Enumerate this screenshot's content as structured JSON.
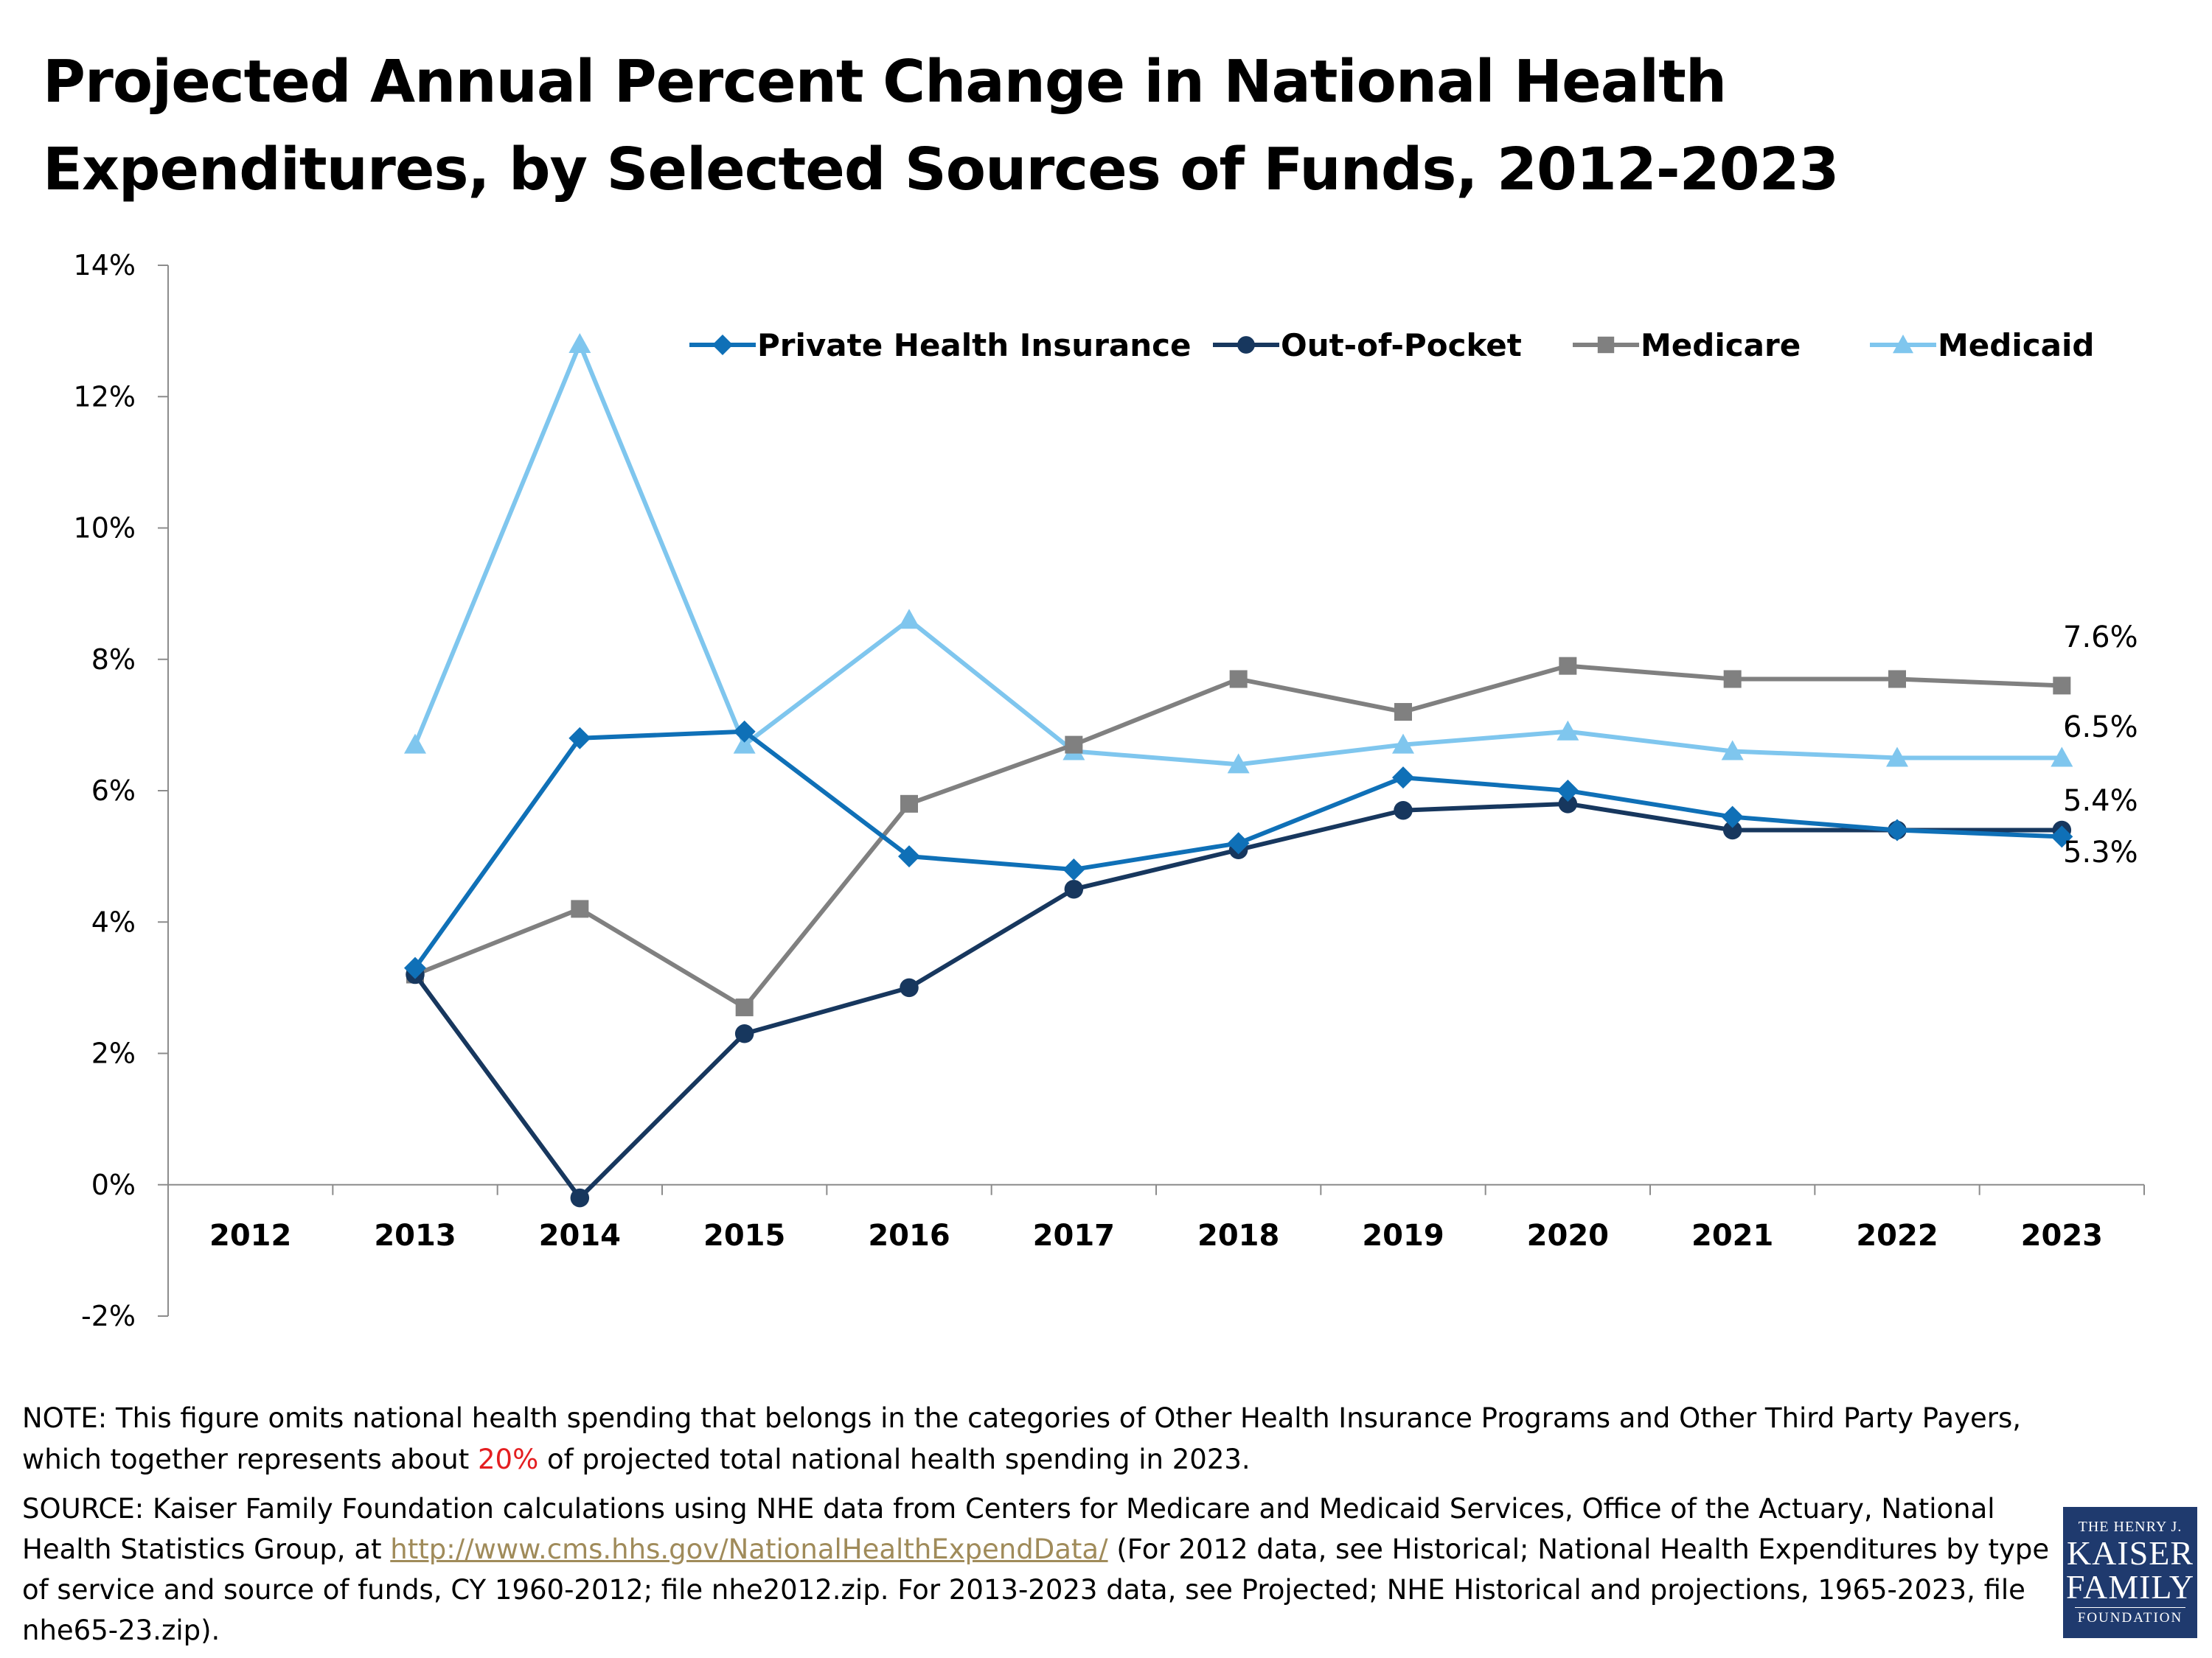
{
  "title": {
    "line1": "Projected Annual Percent Change in National Health",
    "line2": "Expenditures, by Selected Sources of Funds, 2012-2023"
  },
  "chart_data": {
    "type": "line",
    "categories": [
      "2012",
      "2013",
      "2014",
      "2015",
      "2016",
      "2017",
      "2018",
      "2019",
      "2020",
      "2021",
      "2022",
      "2023"
    ],
    "ylim": [
      -2,
      14
    ],
    "yticks": [
      "-2%",
      "0%",
      "2%",
      "4%",
      "6%",
      "8%",
      "10%",
      "12%",
      "14%"
    ],
    "grid": false,
    "legend_position": "top",
    "series": [
      {
        "name": "Private Health Insurance",
        "color": "#0f70b7",
        "marker": "diamond",
        "values": [
          null,
          3.3,
          6.8,
          6.9,
          5.0,
          4.8,
          5.2,
          6.2,
          6.0,
          5.6,
          5.4,
          5.3
        ]
      },
      {
        "name": "Out-of-Pocket",
        "color": "#17375e",
        "marker": "circle",
        "values": [
          null,
          3.2,
          -0.2,
          2.3,
          3.0,
          4.5,
          5.1,
          5.7,
          5.8,
          5.4,
          5.4,
          5.4
        ]
      },
      {
        "name": "Medicare",
        "color": "#808080",
        "marker": "square",
        "values": [
          null,
          3.2,
          4.2,
          2.7,
          5.8,
          6.7,
          7.7,
          7.2,
          7.9,
          7.7,
          7.7,
          7.6
        ]
      },
      {
        "name": "Medicaid",
        "color": "#7fc6ee",
        "marker": "triangle",
        "values": [
          null,
          6.7,
          12.8,
          6.7,
          8.6,
          6.6,
          6.4,
          6.7,
          6.9,
          6.6,
          6.5,
          6.5
        ]
      }
    ],
    "end_labels": [
      "7.6%",
      "6.5%",
      "5.4%",
      "5.3%"
    ]
  },
  "note": {
    "before": "NOTE: This figure omits national health spending that belongs in the categories of Other Health Insurance Programs and Other Third Party Payers, which together represents about ",
    "highlight": "20%",
    "after": " of projected total national health spending in 2023."
  },
  "source": {
    "before": "SOURCE: Kaiser Family Foundation calculations using NHE data from Centers for Medicare and Medicaid Services, Office of the Actuary, National Health Statistics Group, at ",
    "link": "http://www.cms.hhs.gov/NationalHealthExpendData/",
    "after": " (For 2012 data, see Historical; National Health Expenditures by type of service and source of funds, CY 1960-2012;  file nhe2012.zip. For 2013-2023 data, see Projected; NHE Historical and projections, 1965-2023, file nhe65-23.zip)."
  },
  "logo": {
    "line1": "THE HENRY J.",
    "line2": "KAISER",
    "line3": "FAMILY",
    "line4": "FOUNDATION"
  }
}
